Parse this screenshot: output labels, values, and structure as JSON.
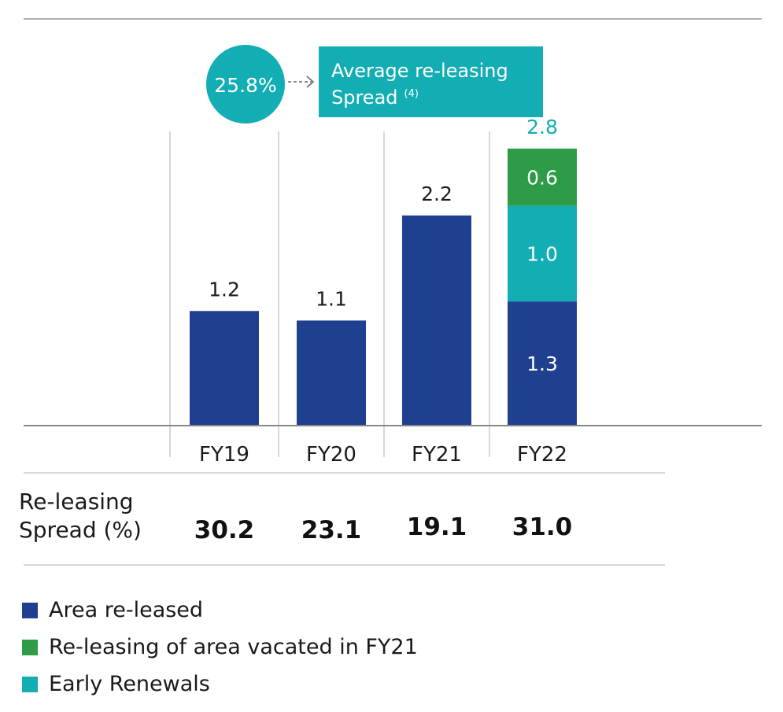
{
  "colors": {
    "area_released": "#1f3f8f",
    "vacated": "#2e9b47",
    "early_renewals": "#12aeb3",
    "callout": "#12aeb3",
    "axis": "#888888",
    "divider": "#cccccc"
  },
  "callout": {
    "value": "25.8%",
    "label_line1": "Average re-leasing",
    "label_line2": "Spread",
    "label_sup": "(4)"
  },
  "spread_row": {
    "label_line1": "Re-leasing",
    "label_line2": "Spread (%)"
  },
  "chart_data": {
    "type": "bar",
    "stacked": true,
    "categories": [
      "FY19",
      "FY20",
      "FY21",
      "FY22"
    ],
    "series": [
      {
        "name": "Area re-leased",
        "values": [
          1.2,
          1.1,
          2.2,
          1.3
        ],
        "color": "#1f3f8f"
      },
      {
        "name": "Early Renewals",
        "values": [
          0,
          0,
          0,
          1.0
        ],
        "color": "#12aeb3"
      },
      {
        "name": "Re-leasing of area vacated in FY21",
        "values": [
          0,
          0,
          0,
          0.6
        ],
        "color": "#2e9b47"
      }
    ],
    "totals": [
      "1.2",
      "1.1",
      "2.2",
      "2.8"
    ],
    "segment_labels_fy22": [
      "1.3",
      "1.0",
      "0.6"
    ],
    "releasing_spread": [
      "30.2",
      "23.1",
      "19.1",
      "31.0"
    ],
    "ylim": [
      0,
      2.8
    ],
    "legend": [
      "Area re-leased",
      "Re-leasing of area vacated in FY21",
      "Early Renewals"
    ],
    "legend_position": "bottom-left",
    "grid": false
  }
}
